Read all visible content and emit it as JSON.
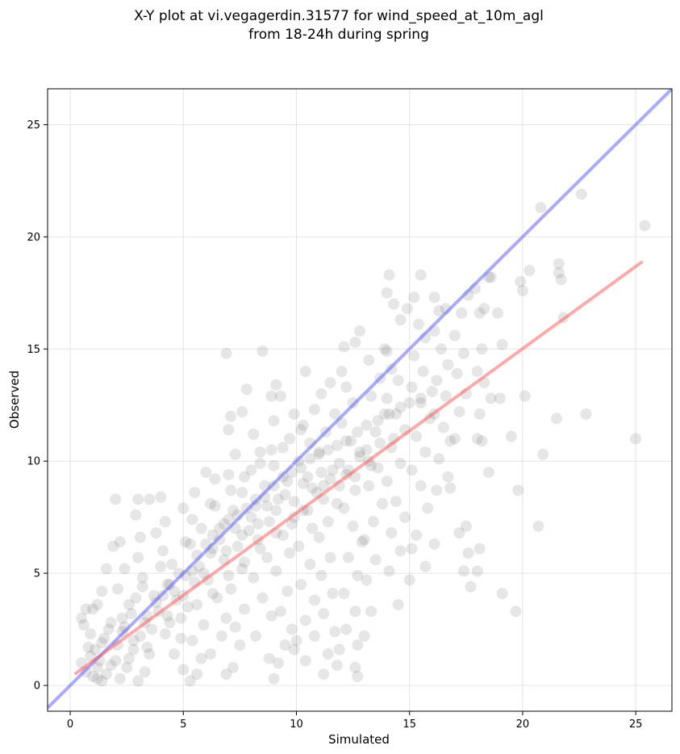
{
  "chart_data": {
    "type": "scatter",
    "title_lines": [
      "X-Y plot at vi.vegagerdin.31577 for wind_speed_at_10m_agl",
      "from 18-24h during spring"
    ],
    "xlabel": "Simulated",
    "ylabel": "Observed",
    "xlim": [
      -1.0,
      26.6
    ],
    "ylim": [
      -1.15,
      26.6
    ],
    "xticks": [
      0,
      5,
      10,
      15,
      20,
      25
    ],
    "yticks": [
      0,
      5,
      10,
      15,
      20,
      25
    ],
    "grid": true,
    "point_color": "#404040",
    "point_opacity": 0.13,
    "lines": [
      {
        "kind": "identity",
        "color": "#5555ff",
        "opacity": 0.5,
        "x": [
          -1.0,
          26.6
        ],
        "y": [
          -1.0,
          26.6
        ]
      },
      {
        "kind": "regression",
        "color": "#ff5555",
        "opacity": 0.5,
        "x": [
          0.2,
          25.3
        ],
        "y": [
          0.5,
          18.9
        ]
      }
    ],
    "points": [
      [
        0.5,
        3.0
      ],
      [
        0.7,
        3.4
      ],
      [
        0.6,
        2.7
      ],
      [
        1.0,
        3.4
      ],
      [
        0.9,
        2.3
      ],
      [
        0.8,
        1.7
      ],
      [
        0.5,
        1.0
      ],
      [
        0.7,
        0.6
      ],
      [
        1.0,
        0.4
      ],
      [
        1.2,
        0.3
      ],
      [
        1.4,
        0.2
      ],
      [
        1.6,
        0.5
      ],
      [
        1.3,
        1.1
      ],
      [
        1.1,
        1.6
      ],
      [
        1.5,
        2.1
      ],
      [
        1.8,
        2.8
      ],
      [
        1.2,
        3.6
      ],
      [
        1.4,
        4.2
      ],
      [
        1.6,
        5.2
      ],
      [
        1.9,
        6.2
      ],
      [
        2.0,
        8.3
      ],
      [
        2.2,
        6.4
      ],
      [
        2.4,
        5.2
      ],
      [
        2.1,
        4.3
      ],
      [
        2.6,
        3.6
      ],
      [
        2.3,
        2.4
      ],
      [
        2.8,
        1.6
      ],
      [
        2.5,
        0.8
      ],
      [
        2.2,
        0.3
      ],
      [
        3.0,
        0.2
      ],
      [
        3.3,
        0.6
      ],
      [
        3.5,
        1.4
      ],
      [
        3.1,
        2.2
      ],
      [
        3.4,
        3.1
      ],
      [
        3.7,
        4.0
      ],
      [
        3.2,
        4.8
      ],
      [
        3.0,
        5.7
      ],
      [
        3.1,
        6.6
      ],
      [
        2.9,
        7.6
      ],
      [
        3.0,
        8.3
      ],
      [
        3.5,
        8.3
      ],
      [
        4.0,
        8.4
      ],
      [
        4.2,
        7.3
      ],
      [
        3.8,
        6.8
      ],
      [
        4.1,
        6.0
      ],
      [
        4.5,
        5.4
      ],
      [
        4.3,
        4.5
      ],
      [
        4.7,
        3.8
      ],
      [
        4.4,
        2.8
      ],
      [
        4.9,
        2.1
      ],
      [
        4.6,
        1.4
      ],
      [
        5.0,
        0.7
      ],
      [
        5.3,
        0.2
      ],
      [
        5.6,
        0.5
      ],
      [
        5.8,
        1.2
      ],
      [
        5.4,
        2.0
      ],
      [
        5.9,
        2.7
      ],
      [
        5.2,
        3.5
      ],
      [
        5.5,
        4.6
      ],
      [
        5.7,
        5.3
      ],
      [
        5.1,
        6.4
      ],
      [
        5.4,
        7.4
      ],
      [
        5.0,
        7.9
      ],
      [
        5.5,
        8.6
      ],
      [
        6.0,
        9.5
      ],
      [
        6.4,
        9.2
      ],
      [
        6.2,
        8.1
      ],
      [
        6.6,
        7.0
      ],
      [
        6.3,
        6.1
      ],
      [
        6.8,
        5.6
      ],
      [
        6.1,
        4.7
      ],
      [
        6.5,
        3.9
      ],
      [
        6.9,
        3.0
      ],
      [
        6.7,
        2.2
      ],
      [
        6.2,
        1.4
      ],
      [
        6.9,
        0.5
      ],
      [
        7.2,
        0.8
      ],
      [
        7.5,
        1.8
      ],
      [
        7.3,
        2.6
      ],
      [
        7.7,
        3.4
      ],
      [
        7.1,
        4.3
      ],
      [
        7.6,
        5.2
      ],
      [
        7.4,
        6.2
      ],
      [
        7.9,
        6.9
      ],
      [
        7.2,
        7.8
      ],
      [
        7.6,
        8.6
      ],
      [
        7.0,
        9.4
      ],
      [
        7.3,
        10.3
      ],
      [
        7.0,
        11.4
      ],
      [
        7.1,
        12.0
      ],
      [
        6.9,
        14.8
      ],
      [
        7.8,
        13.2
      ],
      [
        7.6,
        12.2
      ],
      [
        8.1,
        11.2
      ],
      [
        8.4,
        10.4
      ],
      [
        8.0,
        9.6
      ],
      [
        8.6,
        8.9
      ],
      [
        8.2,
        8.0
      ],
      [
        8.8,
        7.3
      ],
      [
        8.3,
        6.5
      ],
      [
        8.7,
        5.7
      ],
      [
        8.1,
        4.8
      ],
      [
        8.5,
        3.9
      ],
      [
        8.9,
        3.1
      ],
      [
        8.2,
        2.2
      ],
      [
        8.8,
        1.2
      ],
      [
        9.0,
        0.3
      ],
      [
        9.2,
        1.0
      ],
      [
        9.5,
        1.8
      ],
      [
        9.8,
        2.5
      ],
      [
        9.3,
        3.3
      ],
      [
        9.6,
        4.2
      ],
      [
        9.1,
        5.1
      ],
      [
        9.7,
        5.9
      ],
      [
        9.4,
        6.7
      ],
      [
        9.9,
        7.5
      ],
      [
        9.2,
        8.3
      ],
      [
        9.6,
        9.1
      ],
      [
        9.0,
        9.8
      ],
      [
        9.4,
        10.6
      ],
      [
        9.0,
        11.8
      ],
      [
        8.9,
        12.9
      ],
      [
        9.3,
        12.9
      ],
      [
        9.1,
        13.4
      ],
      [
        8.5,
        14.9
      ],
      [
        9.9,
        12.1
      ],
      [
        10.2,
        11.4
      ],
      [
        10.6,
        10.8
      ],
      [
        10.1,
        10.0
      ],
      [
        10.5,
        9.3
      ],
      [
        10.9,
        8.6
      ],
      [
        10.3,
        7.8
      ],
      [
        10.7,
        7.0
      ],
      [
        10.1,
        6.2
      ],
      [
        10.6,
        5.4
      ],
      [
        10.2,
        4.5
      ],
      [
        10.8,
        3.8
      ],
      [
        10.4,
        2.9
      ],
      [
        10.0,
        2.0
      ],
      [
        9.9,
        1.6
      ],
      [
        10.4,
        1.1
      ],
      [
        10.8,
        2.2
      ],
      [
        11.2,
        0.5
      ],
      [
        11.4,
        1.4
      ],
      [
        11.7,
        2.4
      ],
      [
        11.2,
        3.2
      ],
      [
        11.6,
        4.1
      ],
      [
        11.1,
        4.9
      ],
      [
        11.5,
        5.7
      ],
      [
        11.0,
        6.6
      ],
      [
        11.4,
        7.3
      ],
      [
        11.8,
        8.1
      ],
      [
        11.2,
        8.9
      ],
      [
        11.6,
        9.6
      ],
      [
        11.0,
        10.4
      ],
      [
        11.3,
        11.3
      ],
      [
        11.7,
        12.1
      ],
      [
        11.1,
        13.0
      ],
      [
        11.5,
        13.5
      ],
      [
        10.4,
        14.0
      ],
      [
        12.0,
        14.0
      ],
      [
        12.2,
        13.3
      ],
      [
        12.5,
        12.6
      ],
      [
        12.0,
        11.7
      ],
      [
        12.4,
        10.9
      ],
      [
        12.8,
        10.2
      ],
      [
        12.2,
        9.4
      ],
      [
        12.6,
        8.7
      ],
      [
        12.1,
        7.9
      ],
      [
        12.5,
        7.1
      ],
      [
        12.9,
        6.4
      ],
      [
        12.3,
        5.7
      ],
      [
        12.7,
        4.9
      ],
      [
        12.1,
        4.1
      ],
      [
        12.6,
        3.3
      ],
      [
        12.2,
        2.5
      ],
      [
        12.7,
        1.8
      ],
      [
        11.8,
        0.9
      ],
      [
        11.9,
        1.6
      ],
      [
        12.7,
        0.4
      ],
      [
        12.6,
        0.8
      ],
      [
        13.0,
        2.2
      ],
      [
        13.3,
        3.3
      ],
      [
        13.1,
        4.7
      ],
      [
        13.5,
        5.6
      ],
      [
        13.0,
        6.5
      ],
      [
        13.4,
        7.3
      ],
      [
        13.8,
        8.1
      ],
      [
        13.2,
        8.9
      ],
      [
        13.6,
        9.7
      ],
      [
        13.1,
        10.5
      ],
      [
        13.5,
        11.3
      ],
      [
        13.9,
        12.1
      ],
      [
        13.3,
        12.9
      ],
      [
        13.7,
        13.7
      ],
      [
        13.2,
        14.5
      ],
      [
        13.9,
        15.0
      ],
      [
        12.6,
        15.3
      ],
      [
        12.8,
        15.8
      ],
      [
        12.1,
        15.1
      ],
      [
        14.0,
        14.9
      ],
      [
        14.2,
        14.1
      ],
      [
        14.5,
        13.6
      ],
      [
        14.0,
        12.8
      ],
      [
        14.4,
        12.1
      ],
      [
        14.8,
        11.4
      ],
      [
        14.2,
        10.6
      ],
      [
        14.6,
        9.9
      ],
      [
        14.0,
        9.1
      ],
      [
        14.4,
        8.2
      ],
      [
        14.8,
        7.5
      ],
      [
        14.2,
        6.8
      ],
      [
        14.6,
        6.0
      ],
      [
        14.1,
        5.1
      ],
      [
        14.5,
        3.6
      ],
      [
        14.0,
        17.5
      ],
      [
        14.1,
        18.3
      ],
      [
        14.3,
        17.0
      ],
      [
        14.6,
        16.3
      ],
      [
        14.9,
        16.8
      ],
      [
        15.2,
        17.3
      ],
      [
        15.4,
        16.1
      ],
      [
        15.7,
        15.5
      ],
      [
        15.2,
        14.7
      ],
      [
        15.6,
        14.0
      ],
      [
        15.1,
        13.3
      ],
      [
        15.5,
        12.6
      ],
      [
        15.9,
        11.9
      ],
      [
        15.3,
        11.1
      ],
      [
        15.7,
        10.4
      ],
      [
        15.1,
        9.6
      ],
      [
        15.5,
        8.9
      ],
      [
        15.8,
        7.9
      ],
      [
        15.3,
        6.7
      ],
      [
        15.1,
        6.1
      ],
      [
        15.0,
        4.7
      ],
      [
        15.7,
        5.3
      ],
      [
        15.5,
        18.3
      ],
      [
        16.1,
        17.3
      ],
      [
        16.3,
        16.7
      ],
      [
        16.6,
        16.8
      ],
      [
        16.1,
        15.8
      ],
      [
        16.4,
        15.0
      ],
      [
        16.7,
        14.3
      ],
      [
        16.2,
        13.6
      ],
      [
        16.6,
        12.9
      ],
      [
        16.1,
        12.1
      ],
      [
        16.5,
        11.5
      ],
      [
        16.8,
        10.9
      ],
      [
        16.3,
        10.1
      ],
      [
        16.7,
        9.3
      ],
      [
        16.2,
        8.7
      ],
      [
        16.1,
        6.3
      ],
      [
        16.8,
        8.8
      ],
      [
        17.0,
        11.0
      ],
      [
        17.2,
        12.2
      ],
      [
        17.5,
        13.0
      ],
      [
        17.1,
        13.9
      ],
      [
        17.4,
        14.8
      ],
      [
        17.0,
        15.6
      ],
      [
        17.3,
        16.6
      ],
      [
        17.6,
        17.4
      ],
      [
        17.9,
        17.7
      ],
      [
        17.2,
        6.8
      ],
      [
        17.4,
        5.1
      ],
      [
        17.5,
        7.1
      ],
      [
        17.7,
        4.4
      ],
      [
        17.6,
        5.9
      ],
      [
        18.0,
        5.1
      ],
      [
        18.1,
        6.1
      ],
      [
        18.0,
        11.0
      ],
      [
        18.2,
        10.9
      ],
      [
        18.1,
        12.1
      ],
      [
        18.3,
        13.5
      ],
      [
        18.0,
        14.0
      ],
      [
        18.2,
        15.0
      ],
      [
        18.1,
        16.6
      ],
      [
        18.3,
        16.8
      ],
      [
        18.5,
        18.2
      ],
      [
        18.6,
        18.2
      ],
      [
        18.6,
        12.8
      ],
      [
        18.5,
        9.5
      ],
      [
        18.9,
        16.6
      ],
      [
        19.0,
        12.8
      ],
      [
        19.1,
        15.2
      ],
      [
        19.1,
        4.1
      ],
      [
        19.5,
        11.1
      ],
      [
        19.7,
        3.3
      ],
      [
        19.8,
        8.7
      ],
      [
        19.9,
        18.0
      ],
      [
        20.0,
        17.6
      ],
      [
        20.1,
        12.9
      ],
      [
        20.3,
        18.5
      ],
      [
        20.7,
        7.1
      ],
      [
        20.8,
        21.3
      ],
      [
        20.9,
        10.3
      ],
      [
        21.5,
        11.9
      ],
      [
        21.6,
        18.8
      ],
      [
        21.6,
        18.4
      ],
      [
        21.7,
        18.1
      ],
      [
        21.8,
        16.4
      ],
      [
        22.6,
        21.9
      ],
      [
        22.8,
        12.1
      ],
      [
        25.0,
        11.0
      ],
      [
        25.4,
        20.5
      ],
      [
        2.0,
        1.1
      ],
      [
        2.1,
        1.8
      ],
      [
        2.4,
        2.6
      ],
      [
        2.7,
        3.2
      ],
      [
        2.9,
        3.9
      ],
      [
        3.6,
        2.5
      ],
      [
        3.9,
        3.3
      ],
      [
        4.1,
        4.0
      ],
      [
        4.4,
        4.5
      ],
      [
        4.8,
        5.0
      ],
      [
        5.1,
        4.9
      ],
      [
        5.6,
        5.8
      ],
      [
        6.0,
        6.3
      ],
      [
        6.3,
        6.7
      ],
      [
        6.8,
        7.2
      ],
      [
        7.0,
        7.4
      ],
      [
        7.4,
        7.6
      ],
      [
        7.8,
        7.9
      ],
      [
        8.2,
        8.3
      ],
      [
        8.6,
        8.4
      ],
      [
        9.0,
        8.9
      ],
      [
        9.4,
        9.3
      ],
      [
        9.8,
        9.5
      ],
      [
        10.2,
        9.7
      ],
      [
        10.6,
        10.1
      ],
      [
        11.0,
        10.3
      ],
      [
        11.4,
        10.5
      ],
      [
        11.8,
        10.7
      ],
      [
        12.2,
        10.9
      ],
      [
        12.7,
        11.3
      ],
      [
        13.1,
        11.6
      ],
      [
        13.6,
        11.8
      ],
      [
        14.1,
        12.1
      ],
      [
        14.6,
        12.4
      ],
      [
        15.0,
        12.6
      ],
      [
        15.5,
        12.8
      ],
      [
        16.0,
        13.1
      ],
      [
        3.2,
        4.4
      ],
      [
        4.0,
        5.3
      ],
      [
        5.3,
        6.3
      ],
      [
        5.8,
        7.0
      ],
      [
        6.4,
        8.0
      ],
      [
        7.1,
        8.7
      ],
      [
        7.7,
        9.3
      ],
      [
        8.4,
        9.9
      ],
      [
        8.9,
        10.5
      ],
      [
        9.7,
        11.0
      ],
      [
        10.3,
        11.6
      ],
      [
        10.8,
        12.3
      ],
      [
        1.2,
        0.8
      ],
      [
        1.8,
        0.9
      ],
      [
        2.6,
        1.2
      ],
      [
        3.4,
        1.7
      ],
      [
        4.2,
        2.3
      ],
      [
        4.9,
        3.0
      ],
      [
        5.6,
        3.6
      ],
      [
        6.3,
        4.1
      ],
      [
        7.0,
        4.9
      ],
      [
        7.7,
        5.5
      ],
      [
        8.4,
        6.1
      ],
      [
        9.1,
        6.8
      ],
      [
        9.8,
        7.2
      ],
      [
        10.5,
        7.8
      ],
      [
        11.2,
        8.3
      ],
      [
        11.9,
        8.9
      ],
      [
        12.6,
        9.3
      ],
      [
        13.3,
        9.8
      ],
      [
        0.9,
        1.3
      ],
      [
        1.4,
        1.9
      ],
      [
        1.7,
        2.5
      ],
      [
        2.3,
        3.0
      ],
      [
        2.8,
        2.0
      ],
      [
        3.3,
        2.8
      ],
      [
        3.8,
        3.7
      ],
      [
        4.3,
        3.1
      ],
      [
        4.6,
        4.2
      ],
      [
        5.0,
        4.0
      ],
      [
        5.4,
        5.1
      ],
      [
        5.9,
        5.0
      ],
      [
        6.2,
        5.9
      ],
      [
        6.6,
        6.5
      ],
      [
        6.9,
        6.0
      ],
      [
        7.3,
        7.0
      ],
      [
        7.6,
        6.7
      ],
      [
        8.0,
        7.5
      ],
      [
        8.3,
        7.2
      ],
      [
        8.7,
        8.0
      ],
      [
        9.1,
        7.8
      ],
      [
        9.5,
        8.5
      ],
      [
        9.9,
        8.2
      ],
      [
        10.3,
        9.0
      ],
      [
        10.7,
        8.8
      ],
      [
        11.1,
        9.5
      ],
      [
        11.5,
        9.2
      ],
      [
        11.9,
        9.9
      ],
      [
        12.3,
        9.6
      ],
      [
        12.8,
        10.4
      ],
      [
        13.2,
        10.0
      ],
      [
        13.7,
        10.8
      ],
      [
        14.3,
        11.0
      ]
    ]
  }
}
